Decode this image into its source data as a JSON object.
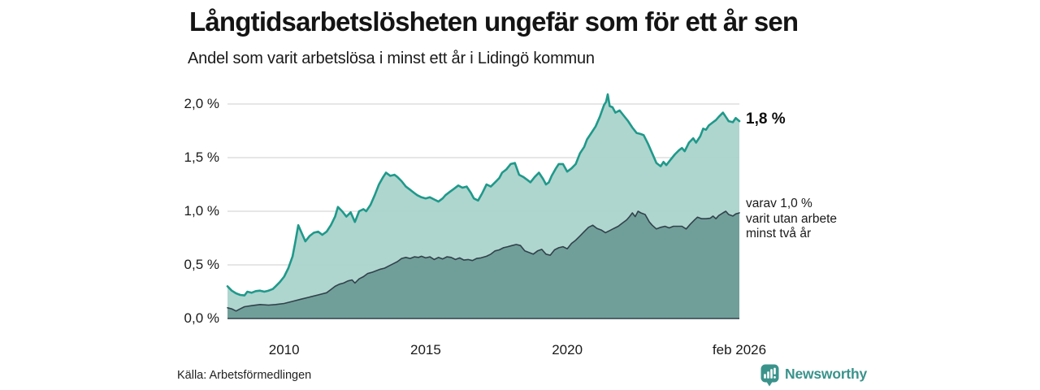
{
  "header": {
    "title": "Långtidsarbetslösheten ungefär som för ett år sen",
    "subtitle": "Andel som varit arbetslösa i minst ett år i Lidingö kommun"
  },
  "annotations": {
    "end_value_label": "1,8 %",
    "sub_series_lines": [
      "varav 1,0 %",
      "varit utan arbete",
      "minst två år"
    ]
  },
  "footer": {
    "source": "Källa: Arbetsförmedlingen",
    "brand": "Newsworthy"
  },
  "colors": {
    "background": "#ffffff",
    "gridline": "#d8d8d8",
    "baseline": "#31424a",
    "brand_teal": "#3a938b",
    "series1_line": "#1f998a",
    "series1_fill": "#a9d2cb",
    "series2_line": "#31424a",
    "series2_fill": "#6d9c97"
  },
  "chart_data": {
    "type": "area",
    "title": "Långtidsarbetslösheten ungefär som för ett år sen",
    "subtitle": "Andel som varit arbetslösa i minst ett år i Lidingö kommun",
    "xlabel": "",
    "ylabel": "",
    "grid": "horizontal",
    "legend_position": "none",
    "xlim": [
      2008.0,
      2026.08
    ],
    "ylim": [
      0,
      2.0
    ],
    "y_ticks": [
      {
        "label": "0,0 %",
        "value": 0.0
      },
      {
        "label": "0,5 %",
        "value": 0.5
      },
      {
        "label": "1,0 %",
        "value": 1.0
      },
      {
        "label": "1,5 %",
        "value": 1.5
      },
      {
        "label": "2,0 %",
        "value": 2.0
      }
    ],
    "x_ticks": [
      {
        "label": "2010",
        "year": 2010
      },
      {
        "label": "2015",
        "year": 2015
      },
      {
        "label": "2020",
        "year": 2020
      },
      {
        "label": "feb 2026",
        "year": 2026.08
      }
    ],
    "series": [
      {
        "name": "Andel som varit arbetslösa i minst ett år",
        "end_value_pct": 1.8,
        "points": [
          [
            2008.0,
            0.3
          ],
          [
            2008.15,
            0.26
          ],
          [
            2008.3,
            0.235
          ],
          [
            2008.45,
            0.22
          ],
          [
            2008.6,
            0.215
          ],
          [
            2008.7,
            0.25
          ],
          [
            2008.85,
            0.24
          ],
          [
            2009.0,
            0.255
          ],
          [
            2009.15,
            0.26
          ],
          [
            2009.3,
            0.25
          ],
          [
            2009.45,
            0.26
          ],
          [
            2009.6,
            0.275
          ],
          [
            2009.7,
            0.3
          ],
          [
            2009.85,
            0.34
          ],
          [
            2010.0,
            0.39
          ],
          [
            2010.15,
            0.47
          ],
          [
            2010.3,
            0.58
          ],
          [
            2010.4,
            0.72
          ],
          [
            2010.5,
            0.87
          ],
          [
            2010.6,
            0.81
          ],
          [
            2010.75,
            0.72
          ],
          [
            2010.9,
            0.77
          ],
          [
            2011.05,
            0.8
          ],
          [
            2011.2,
            0.81
          ],
          [
            2011.35,
            0.78
          ],
          [
            2011.5,
            0.81
          ],
          [
            2011.65,
            0.87
          ],
          [
            2011.8,
            0.95
          ],
          [
            2011.9,
            1.04
          ],
          [
            2012.05,
            1.0
          ],
          [
            2012.2,
            0.95
          ],
          [
            2012.35,
            0.99
          ],
          [
            2012.5,
            0.9
          ],
          [
            2012.65,
            1.0
          ],
          [
            2012.8,
            1.02
          ],
          [
            2012.9,
            1.0
          ],
          [
            2013.05,
            1.06
          ],
          [
            2013.2,
            1.15
          ],
          [
            2013.35,
            1.25
          ],
          [
            2013.5,
            1.32
          ],
          [
            2013.6,
            1.36
          ],
          [
            2013.75,
            1.33
          ],
          [
            2013.9,
            1.34
          ],
          [
            2014.0,
            1.32
          ],
          [
            2014.15,
            1.28
          ],
          [
            2014.3,
            1.23
          ],
          [
            2014.45,
            1.2
          ],
          [
            2014.6,
            1.17
          ],
          [
            2014.7,
            1.15
          ],
          [
            2014.85,
            1.13
          ],
          [
            2015.0,
            1.12
          ],
          [
            2015.15,
            1.13
          ],
          [
            2015.3,
            1.11
          ],
          [
            2015.45,
            1.09
          ],
          [
            2015.6,
            1.12
          ],
          [
            2015.7,
            1.15
          ],
          [
            2015.85,
            1.18
          ],
          [
            2016.0,
            1.21
          ],
          [
            2016.15,
            1.24
          ],
          [
            2016.3,
            1.22
          ],
          [
            2016.45,
            1.23
          ],
          [
            2016.6,
            1.17
          ],
          [
            2016.7,
            1.12
          ],
          [
            2016.85,
            1.1
          ],
          [
            2017.0,
            1.17
          ],
          [
            2017.15,
            1.25
          ],
          [
            2017.3,
            1.23
          ],
          [
            2017.45,
            1.27
          ],
          [
            2017.6,
            1.31
          ],
          [
            2017.7,
            1.36
          ],
          [
            2017.85,
            1.39
          ],
          [
            2018.0,
            1.44
          ],
          [
            2018.15,
            1.45
          ],
          [
            2018.3,
            1.34
          ],
          [
            2018.45,
            1.32
          ],
          [
            2018.6,
            1.29
          ],
          [
            2018.7,
            1.27
          ],
          [
            2018.85,
            1.32
          ],
          [
            2019.0,
            1.36
          ],
          [
            2019.15,
            1.3
          ],
          [
            2019.25,
            1.25
          ],
          [
            2019.35,
            1.27
          ],
          [
            2019.45,
            1.33
          ],
          [
            2019.6,
            1.4
          ],
          [
            2019.7,
            1.44
          ],
          [
            2019.85,
            1.44
          ],
          [
            2020.0,
            1.37
          ],
          [
            2020.15,
            1.4
          ],
          [
            2020.3,
            1.44
          ],
          [
            2020.45,
            1.54
          ],
          [
            2020.6,
            1.6
          ],
          [
            2020.7,
            1.67
          ],
          [
            2020.85,
            1.73
          ],
          [
            2021.0,
            1.79
          ],
          [
            2021.15,
            1.88
          ],
          [
            2021.3,
            1.99
          ],
          [
            2021.37,
            2.02
          ],
          [
            2021.43,
            2.09
          ],
          [
            2021.5,
            1.98
          ],
          [
            2021.6,
            1.97
          ],
          [
            2021.7,
            1.92
          ],
          [
            2021.85,
            1.94
          ],
          [
            2022.0,
            1.89
          ],
          [
            2022.15,
            1.84
          ],
          [
            2022.3,
            1.78
          ],
          [
            2022.45,
            1.73
          ],
          [
            2022.6,
            1.72
          ],
          [
            2022.7,
            1.71
          ],
          [
            2022.85,
            1.63
          ],
          [
            2023.0,
            1.54
          ],
          [
            2023.15,
            1.45
          ],
          [
            2023.3,
            1.42
          ],
          [
            2023.4,
            1.46
          ],
          [
            2023.5,
            1.43
          ],
          [
            2023.65,
            1.48
          ],
          [
            2023.8,
            1.53
          ],
          [
            2023.95,
            1.57
          ],
          [
            2024.05,
            1.59
          ],
          [
            2024.15,
            1.56
          ],
          [
            2024.3,
            1.64
          ],
          [
            2024.45,
            1.68
          ],
          [
            2024.55,
            1.64
          ],
          [
            2024.7,
            1.7
          ],
          [
            2024.8,
            1.77
          ],
          [
            2024.9,
            1.76
          ],
          [
            2025.0,
            1.8
          ],
          [
            2025.15,
            1.83
          ],
          [
            2025.25,
            1.85
          ],
          [
            2025.35,
            1.88
          ],
          [
            2025.5,
            1.92
          ],
          [
            2025.6,
            1.88
          ],
          [
            2025.7,
            1.84
          ],
          [
            2025.85,
            1.83
          ],
          [
            2025.95,
            1.87
          ],
          [
            2026.08,
            1.84
          ]
        ]
      },
      {
        "name": "varav varit utan arbete minst två år",
        "end_value_pct": 1.0,
        "points": [
          [
            2008.0,
            0.1
          ],
          [
            2008.15,
            0.09
          ],
          [
            2008.3,
            0.07
          ],
          [
            2008.45,
            0.09
          ],
          [
            2008.6,
            0.11
          ],
          [
            2008.85,
            0.12
          ],
          [
            2009.15,
            0.13
          ],
          [
            2009.45,
            0.125
          ],
          [
            2009.7,
            0.13
          ],
          [
            2010.0,
            0.14
          ],
          [
            2010.3,
            0.16
          ],
          [
            2010.6,
            0.18
          ],
          [
            2010.9,
            0.2
          ],
          [
            2011.2,
            0.22
          ],
          [
            2011.5,
            0.24
          ],
          [
            2011.65,
            0.27
          ],
          [
            2011.8,
            0.3
          ],
          [
            2011.95,
            0.32
          ],
          [
            2012.1,
            0.33
          ],
          [
            2012.25,
            0.35
          ],
          [
            2012.4,
            0.36
          ],
          [
            2012.5,
            0.33
          ],
          [
            2012.65,
            0.37
          ],
          [
            2012.8,
            0.39
          ],
          [
            2012.95,
            0.42
          ],
          [
            2013.1,
            0.43
          ],
          [
            2013.25,
            0.445
          ],
          [
            2013.4,
            0.46
          ],
          [
            2013.55,
            0.47
          ],
          [
            2013.7,
            0.49
          ],
          [
            2013.85,
            0.51
          ],
          [
            2014.0,
            0.53
          ],
          [
            2014.15,
            0.56
          ],
          [
            2014.3,
            0.57
          ],
          [
            2014.45,
            0.56
          ],
          [
            2014.6,
            0.575
          ],
          [
            2014.75,
            0.57
          ],
          [
            2014.85,
            0.58
          ],
          [
            2015.0,
            0.565
          ],
          [
            2015.15,
            0.575
          ],
          [
            2015.3,
            0.55
          ],
          [
            2015.45,
            0.57
          ],
          [
            2015.6,
            0.555
          ],
          [
            2015.75,
            0.575
          ],
          [
            2015.9,
            0.57
          ],
          [
            2016.05,
            0.55
          ],
          [
            2016.2,
            0.565
          ],
          [
            2016.35,
            0.545
          ],
          [
            2016.5,
            0.55
          ],
          [
            2016.65,
            0.54
          ],
          [
            2016.8,
            0.56
          ],
          [
            2016.95,
            0.565
          ],
          [
            2017.15,
            0.58
          ],
          [
            2017.3,
            0.6
          ],
          [
            2017.45,
            0.63
          ],
          [
            2017.6,
            0.64
          ],
          [
            2017.75,
            0.66
          ],
          [
            2017.9,
            0.67
          ],
          [
            2018.05,
            0.68
          ],
          [
            2018.2,
            0.69
          ],
          [
            2018.35,
            0.68
          ],
          [
            2018.5,
            0.63
          ],
          [
            2018.65,
            0.615
          ],
          [
            2018.8,
            0.6
          ],
          [
            2018.95,
            0.63
          ],
          [
            2019.1,
            0.645
          ],
          [
            2019.25,
            0.6
          ],
          [
            2019.4,
            0.59
          ],
          [
            2019.55,
            0.64
          ],
          [
            2019.7,
            0.66
          ],
          [
            2019.85,
            0.67
          ],
          [
            2020.0,
            0.65
          ],
          [
            2020.15,
            0.7
          ],
          [
            2020.3,
            0.73
          ],
          [
            2020.45,
            0.77
          ],
          [
            2020.6,
            0.81
          ],
          [
            2020.75,
            0.85
          ],
          [
            2020.9,
            0.87
          ],
          [
            2021.05,
            0.84
          ],
          [
            2021.2,
            0.825
          ],
          [
            2021.35,
            0.8
          ],
          [
            2021.5,
            0.82
          ],
          [
            2021.65,
            0.84
          ],
          [
            2021.8,
            0.86
          ],
          [
            2021.95,
            0.89
          ],
          [
            2022.1,
            0.92
          ],
          [
            2022.2,
            0.95
          ],
          [
            2022.3,
            0.985
          ],
          [
            2022.4,
            0.95
          ],
          [
            2022.5,
            1.0
          ],
          [
            2022.6,
            0.985
          ],
          [
            2022.75,
            0.97
          ],
          [
            2022.9,
            0.9
          ],
          [
            2023.0,
            0.87
          ],
          [
            2023.15,
            0.835
          ],
          [
            2023.3,
            0.85
          ],
          [
            2023.45,
            0.86
          ],
          [
            2023.6,
            0.845
          ],
          [
            2023.75,
            0.86
          ],
          [
            2023.9,
            0.86
          ],
          [
            2024.05,
            0.86
          ],
          [
            2024.2,
            0.835
          ],
          [
            2024.35,
            0.88
          ],
          [
            2024.5,
            0.92
          ],
          [
            2024.6,
            0.945
          ],
          [
            2024.75,
            0.93
          ],
          [
            2024.9,
            0.93
          ],
          [
            2025.05,
            0.935
          ],
          [
            2025.15,
            0.955
          ],
          [
            2025.25,
            0.93
          ],
          [
            2025.35,
            0.96
          ],
          [
            2025.5,
            0.985
          ],
          [
            2025.6,
            1.0
          ],
          [
            2025.7,
            0.97
          ],
          [
            2025.85,
            0.955
          ],
          [
            2025.95,
            0.975
          ],
          [
            2026.08,
            0.985
          ]
        ]
      }
    ]
  }
}
